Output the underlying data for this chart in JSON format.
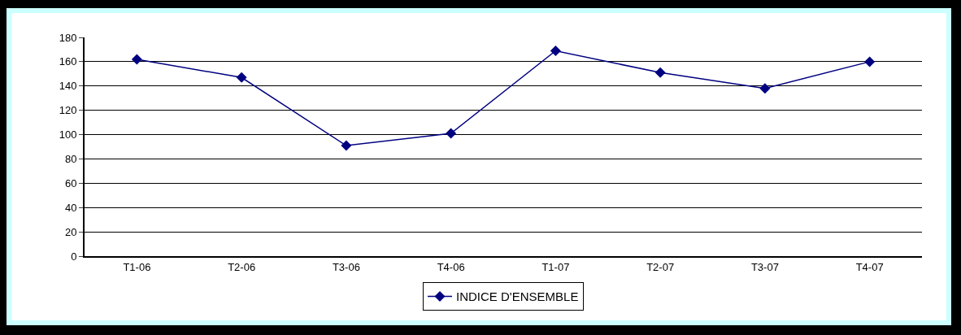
{
  "chart_data": {
    "type": "line",
    "categories": [
      "T1-06",
      "T2-06",
      "T3-06",
      "T4-06",
      "T1-07",
      "T2-07",
      "T3-07",
      "T4-07"
    ],
    "series": [
      {
        "name": "INDICE D'ENSEMBLE",
        "color": "#000080",
        "values": [
          162,
          147,
          91,
          101,
          169,
          151,
          138,
          160
        ]
      }
    ],
    "ylim": [
      0,
      180
    ],
    "yticks": [
      0,
      20,
      40,
      60,
      80,
      100,
      120,
      140,
      160,
      180
    ],
    "grid": "y",
    "legend": "bottom",
    "marker": "diamond",
    "line_style": "solid"
  }
}
